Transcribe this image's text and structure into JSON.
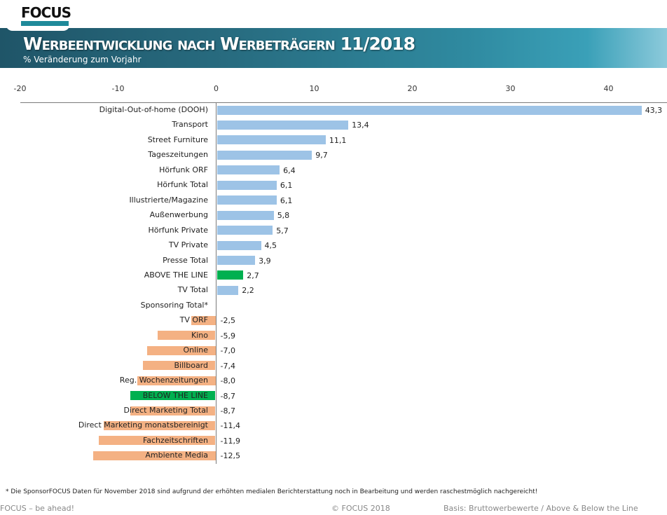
{
  "header": {
    "logo_text": "FOCUS",
    "title": "Werbeentwicklung nach Werbeträgern 11/2018",
    "subtitle": "% Veränderung  zum Vorjahr"
  },
  "colors": {
    "positive": "#9dc3e6",
    "negative": "#f4b183",
    "total": "#00b050",
    "banner_dark": "#1f5568",
    "banner_light": "#3aa0b8"
  },
  "chart_data": {
    "type": "bar",
    "orientation": "horizontal",
    "title": "Werbeentwicklung nach Werbeträgern 11/2018",
    "subtitle": "% Veränderung  zum Vorjahr",
    "xlabel": "",
    "ylabel": "",
    "xlim": [
      -20,
      45
    ],
    "xticks": [
      -20,
      -10,
      0,
      10,
      20,
      30,
      40
    ],
    "xtick_labels": [
      "-20",
      "-10",
      "0",
      "10",
      "20",
      "30",
      "40"
    ],
    "axis_position": "top",
    "grid": false,
    "legend": null,
    "categories": [
      "Digital-Out-of-home (DOOH)",
      "Transport",
      "Street Furniture",
      "Tageszeitungen",
      "Hörfunk ORF",
      "Hörfunk Total",
      "Illustrierte/Magazine",
      "Außenwerbung",
      "Hörfunk Private",
      "TV Private",
      "Presse Total",
      "ABOVE THE LINE",
      "TV Total",
      "Sponsoring Total*",
      "TV ORF",
      "Kino",
      "Online",
      "Billboard",
      "Reg. Wochenzeitungen",
      "BELOW THE LINE",
      "Direct Marketing Total",
      "Direct Marketing monatsbereinigt",
      "Fachzeitschriften",
      "Ambiente Media"
    ],
    "values": [
      43.3,
      13.4,
      11.1,
      9.7,
      6.4,
      6.1,
      6.1,
      5.8,
      5.7,
      4.5,
      3.9,
      2.7,
      2.2,
      null,
      -2.5,
      -5.9,
      -7.0,
      -7.4,
      -8.0,
      -8.7,
      -8.7,
      -11.4,
      -11.9,
      -12.5
    ],
    "value_labels": [
      "43,3",
      "13,4",
      "11,1",
      "9,7",
      "6,4",
      "6,1",
      "6,1",
      "5,8",
      "5,7",
      "4,5",
      "3,9",
      "2,7",
      "2,2",
      "",
      "-2,5",
      "-5,9",
      "-7,0",
      "-7,4",
      "-8,0",
      "-8,7",
      "-8,7",
      "-11,4",
      "-11,9",
      "-12,5"
    ],
    "highlight": [
      "ABOVE THE LINE",
      "BELOW THE LINE"
    ]
  },
  "footer": {
    "footnote": "* Die SponsorFOCUS Daten für November 2018 sind aufgrund der erhöhten medialen Berichterstattung noch in  Bearbeitung und werden raschestmöglich nachgereicht!",
    "slogan": "FOCUS – be ahead!",
    "copyright": "© FOCUS 2018",
    "basis": "Basis: Bruttowerbewerte / Above & Below the Line"
  }
}
